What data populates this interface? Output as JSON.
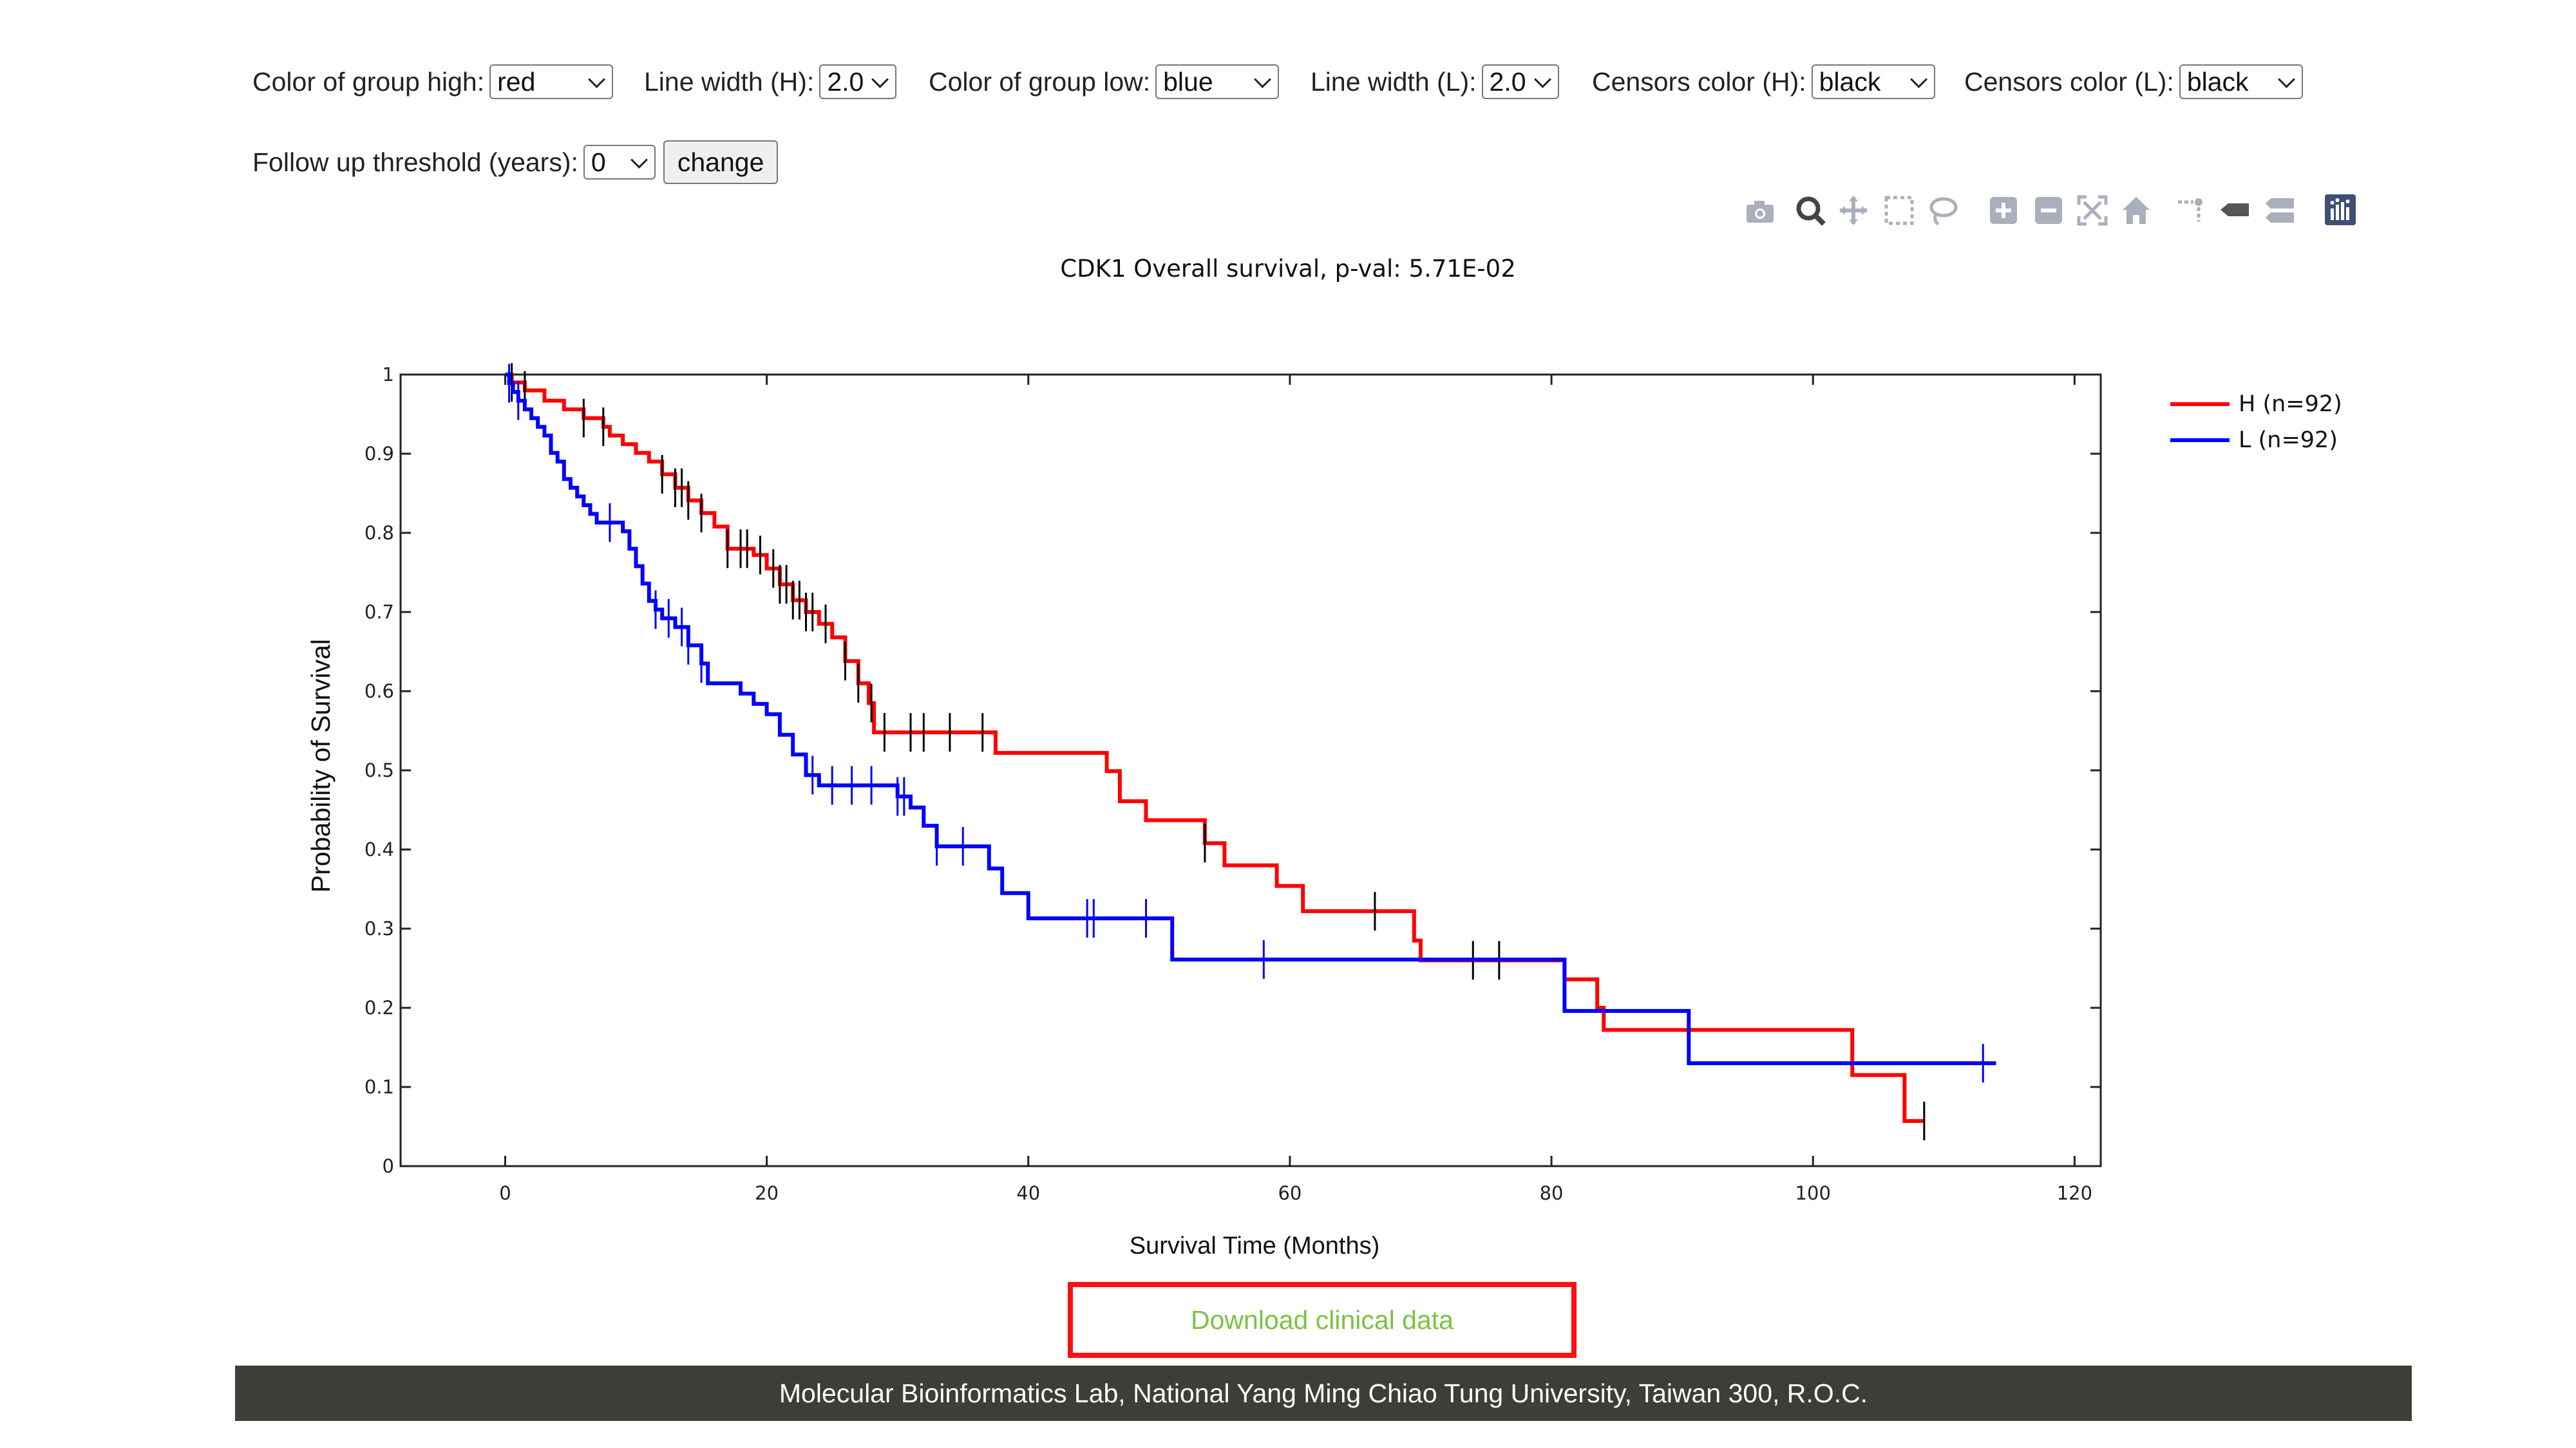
{
  "controls": {
    "color_high": {
      "label": "Color of group high:",
      "value": "red"
    },
    "line_width_h": {
      "label": "Line width (H):",
      "value": "2.0"
    },
    "color_low": {
      "label": "Color of group low:",
      "value": "blue"
    },
    "line_width_l": {
      "label": "Line width (L):",
      "value": "2.0"
    },
    "censors_h": {
      "label": "Censors color (H):",
      "value": "black"
    },
    "censors_l": {
      "label": "Censors color (L):",
      "value": "black"
    },
    "follow_up": {
      "label": "Follow up threshold (years):",
      "value": "0"
    },
    "change_label": "change"
  },
  "modebar_icons": [
    "camera-icon",
    "zoom-icon",
    "pan-icon",
    "box-select-icon",
    "lasso-select-icon",
    "zoom-in-icon",
    "zoom-out-icon",
    "autoscale-icon",
    "reset-axes-icon",
    "spike-lines-icon",
    "hover-closest-icon",
    "hover-compare-icon",
    "plotly-logo-icon"
  ],
  "chart_data": {
    "type": "line",
    "title": "CDK1 Overall survival, p-val: 5.71E-02",
    "xlabel": "Survival Time (Months)",
    "ylabel": "Probability of Survival",
    "xlim": [
      -8,
      122
    ],
    "ylim": [
      0,
      1
    ],
    "xticks": [
      0,
      20,
      40,
      60,
      80,
      100,
      120
    ],
    "yticks": [
      0,
      0.1,
      0.2,
      0.3,
      0.4,
      0.5,
      0.6,
      0.7,
      0.8,
      0.9,
      1
    ],
    "ytick_labels": [
      "0",
      "0.1",
      "0.2",
      "0.3",
      "0.4",
      "0.5",
      "0.6",
      "0.7",
      "0.8",
      "0.9",
      "1"
    ],
    "legend_position": "top-right",
    "series": [
      {
        "name": "H (n=92)",
        "color": "#ff0000",
        "steps": [
          [
            0,
            1
          ],
          [
            0.5,
            0.99
          ],
          [
            1.5,
            0.98
          ],
          [
            3,
            0.967
          ],
          [
            4.5,
            0.956
          ],
          [
            6,
            0.945
          ],
          [
            7.5,
            0.934
          ],
          [
            8,
            0.923
          ],
          [
            9,
            0.912
          ],
          [
            10,
            0.901
          ],
          [
            11,
            0.89
          ],
          [
            12,
            0.874
          ],
          [
            13,
            0.857
          ],
          [
            14,
            0.841
          ],
          [
            15,
            0.825
          ],
          [
            16,
            0.808
          ],
          [
            17,
            0.78
          ],
          [
            19,
            0.772
          ],
          [
            20,
            0.755
          ],
          [
            21,
            0.735
          ],
          [
            22,
            0.715
          ],
          [
            23,
            0.7
          ],
          [
            24,
            0.685
          ],
          [
            25,
            0.668
          ],
          [
            26,
            0.638
          ],
          [
            27,
            0.61
          ],
          [
            27.8,
            0.585
          ],
          [
            28.2,
            0.548
          ],
          [
            37.5,
            0.522
          ],
          [
            46,
            0.499
          ],
          [
            47,
            0.461
          ],
          [
            49,
            0.437
          ],
          [
            53.5,
            0.408
          ],
          [
            55,
            0.38
          ],
          [
            59,
            0.354
          ],
          [
            61,
            0.322
          ],
          [
            69.5,
            0.285
          ],
          [
            70,
            0.26
          ],
          [
            81,
            0.236
          ],
          [
            83.5,
            0.2
          ],
          [
            84,
            0.172
          ],
          [
            103,
            0.115
          ],
          [
            107,
            0.057
          ],
          [
            108.5,
            0.057
          ]
        ],
        "censors": [
          0.5,
          1.5,
          6,
          7.5,
          12,
          13,
          13.5,
          14,
          15,
          17,
          18,
          18.5,
          19.5,
          20.5,
          21,
          21.5,
          22,
          22.5,
          23,
          23.5,
          24.5,
          26,
          27,
          28,
          29,
          31,
          32,
          34,
          36.5,
          53.5,
          66.5,
          74,
          76,
          90.5,
          108.5
        ]
      },
      {
        "name": "L (n=92)",
        "color": "#0000ff",
        "steps": [
          [
            0,
            1
          ],
          [
            0.3,
            0.989
          ],
          [
            0.6,
            0.978
          ],
          [
            1,
            0.967
          ],
          [
            1.5,
            0.956
          ],
          [
            2,
            0.945
          ],
          [
            2.5,
            0.934
          ],
          [
            3,
            0.923
          ],
          [
            3.5,
            0.901
          ],
          [
            4,
            0.89
          ],
          [
            4.5,
            0.868
          ],
          [
            5,
            0.857
          ],
          [
            5.5,
            0.846
          ],
          [
            6,
            0.835
          ],
          [
            6.5,
            0.824
          ],
          [
            7,
            0.813
          ],
          [
            9,
            0.802
          ],
          [
            9.5,
            0.78
          ],
          [
            10,
            0.758
          ],
          [
            10.5,
            0.736
          ],
          [
            11,
            0.714
          ],
          [
            11.5,
            0.703
          ],
          [
            12,
            0.692
          ],
          [
            13,
            0.681
          ],
          [
            14,
            0.658
          ],
          [
            15,
            0.635
          ],
          [
            15.5,
            0.61
          ],
          [
            18,
            0.597
          ],
          [
            19,
            0.584
          ],
          [
            20,
            0.571
          ],
          [
            21,
            0.545
          ],
          [
            22,
            0.52
          ],
          [
            23,
            0.494
          ],
          [
            24,
            0.481
          ],
          [
            30,
            0.467
          ],
          [
            31,
            0.453
          ],
          [
            32,
            0.43
          ],
          [
            33,
            0.404
          ],
          [
            37,
            0.376
          ],
          [
            38,
            0.345
          ],
          [
            40,
            0.313
          ],
          [
            51,
            0.261
          ],
          [
            81,
            0.196
          ],
          [
            90.5,
            0.13
          ],
          [
            114,
            0.13
          ]
        ],
        "censors": [
          0.3,
          1,
          8,
          11.5,
          12.5,
          13.5,
          14,
          15,
          23.5,
          25,
          26.5,
          28,
          30,
          30.5,
          33,
          35,
          44.5,
          45,
          49,
          58,
          113
        ]
      }
    ]
  },
  "download_label": "Download clinical data",
  "footer_text": "Molecular Bioinformatics Lab, National Yang Ming Chiao Tung University, Taiwan 300, R.O.C."
}
